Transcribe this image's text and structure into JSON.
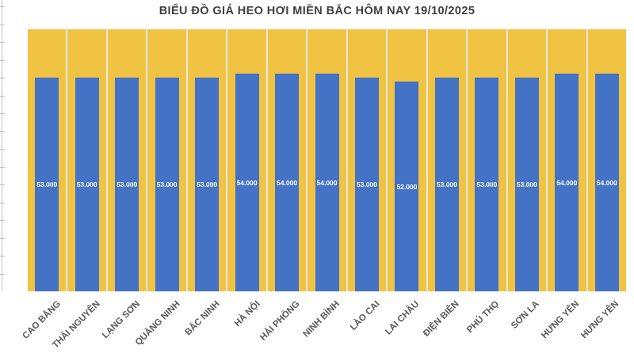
{
  "title": "BIỂU ĐỒ GIÁ HEO HƠI MIỀN BẮC HÔM NAY 19/10/2025",
  "colors": {
    "bar": "#4472C4",
    "plot_background": "#F0C343",
    "gridline": "#EDEAE0",
    "axis": "#C0C0C0",
    "title_text": "#404040",
    "x_label_text": "#595959",
    "value_label_text": "#FFFFFF"
  },
  "chart_data": {
    "type": "bar",
    "title": "BIỂU ĐỒ GIÁ HEO HƠI MIỀN BẮC HÔM NAY 19/10/2025",
    "categories": [
      "CAO BẰNG",
      "THÁI NGUYÊN",
      "LẠNG SƠN",
      "QUẢNG NINH",
      "BẮC NINH",
      "HÀ NỘI",
      "HẢI PHÒNG",
      "NINH BÌNH",
      "LÀO CAI",
      "LAI CHÂU",
      "ĐIỆN BIÊN",
      "PHÚ THỌ",
      "SƠN LA",
      "HƯNG YÊN",
      "HƯNG YÊN"
    ],
    "values": [
      53000,
      53000,
      53000,
      53000,
      53000,
      54000,
      54000,
      54000,
      53000,
      52000,
      53000,
      53000,
      53000,
      54000,
      54000
    ],
    "value_labels": [
      "53.000",
      "53.000",
      "53.000",
      "53.000",
      "53.000",
      "54.000",
      "54.000",
      "54.000",
      "53.000",
      "52.000",
      "53.000",
      "53.000",
      "53.000",
      "54.000",
      "54.000"
    ],
    "xlabel": "",
    "ylabel": "",
    "ylim": [
      0,
      65000
    ],
    "y_axis_tick_count": 16,
    "y_axis_labels": "none",
    "legend": "none",
    "grid": "vertical column separators",
    "value_label_position": "inside-center",
    "x_label_rotation_deg": 45
  }
}
